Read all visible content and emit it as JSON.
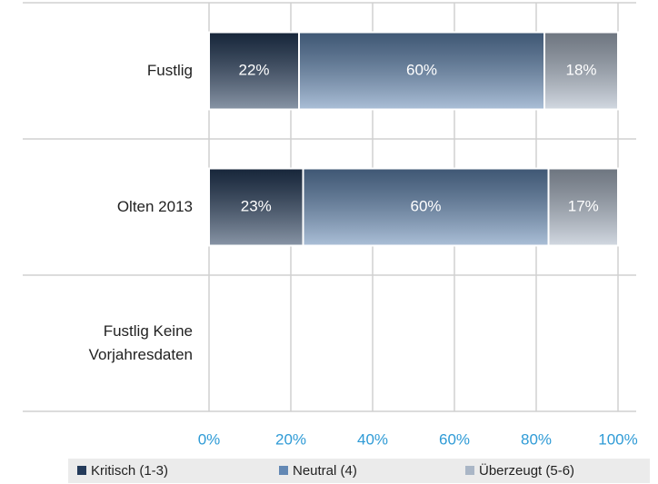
{
  "chart_data": {
    "type": "stacked-barh",
    "categories": [
      "Fustlig",
      "Olten 2013",
      "Fustlig Keine Vorjahresdaten"
    ],
    "series": [
      {
        "name": "Kritisch (1-3)",
        "color": "#243b5a",
        "values": [
          22,
          23,
          null
        ],
        "value_labels": [
          "22%",
          "23%",
          null
        ]
      },
      {
        "name": "Neutral (4)",
        "color": "#6388b4",
        "values": [
          60,
          60,
          null
        ],
        "value_labels": [
          "60%",
          "60%",
          null
        ]
      },
      {
        "name": "Überzeugt (5-6)",
        "color": "#aab6c6",
        "values": [
          18,
          17,
          null
        ],
        "value_labels": [
          "18%",
          "17%",
          null
        ]
      }
    ],
    "xlim": [
      0,
      100
    ],
    "xticks": [
      {
        "value": 0,
        "label": "0%"
      },
      {
        "value": 20,
        "label": "20%"
      },
      {
        "value": 40,
        "label": "40%"
      },
      {
        "value": 60,
        "label": "60%"
      },
      {
        "value": 80,
        "label": "80%"
      },
      {
        "value": 100,
        "label": "100%"
      }
    ],
    "grid": true
  }
}
